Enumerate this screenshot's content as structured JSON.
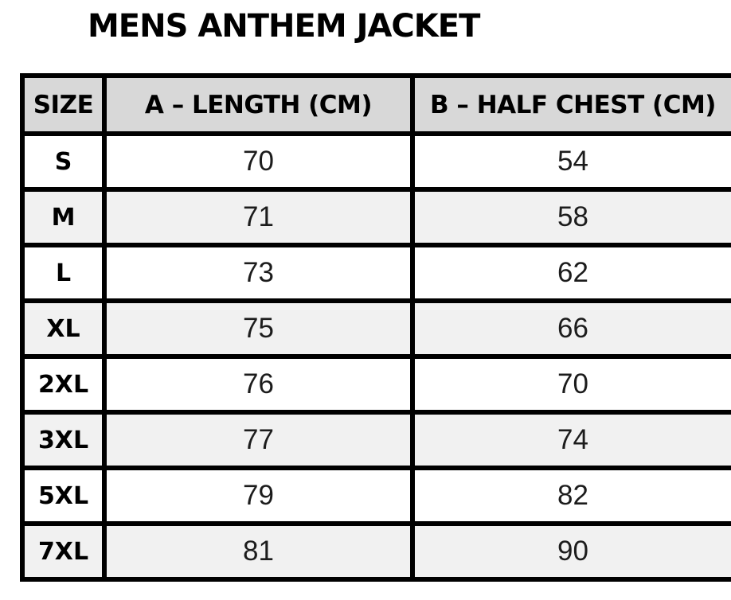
{
  "title": "MENS ANTHEM JACKET",
  "colors": {
    "header_bg": "#d8d8d8",
    "row_bg": "#ffffff",
    "row_alt_bg": "#f1f1f1",
    "border": "#000000",
    "text": "#000000"
  },
  "table": {
    "columns": [
      "SIZE",
      "A – LENGTH (CM)",
      "B – HALF CHEST (CM)"
    ],
    "rows": [
      [
        "S",
        "70",
        "54"
      ],
      [
        "M",
        "71",
        "58"
      ],
      [
        "L",
        "73",
        "62"
      ],
      [
        "XL",
        "75",
        "66"
      ],
      [
        "2XL",
        "76",
        "70"
      ],
      [
        "3XL",
        "77",
        "74"
      ],
      [
        "5XL",
        "79",
        "82"
      ],
      [
        "7XL",
        "81",
        "90"
      ]
    ]
  },
  "chart_data": {
    "type": "table",
    "title": "MENS ANTHEM JACKET",
    "columns": [
      "SIZE",
      "A – LENGTH (CM)",
      "B – HALF CHEST (CM)"
    ],
    "rows": [
      [
        "S",
        70,
        54
      ],
      [
        "M",
        71,
        58
      ],
      [
        "L",
        73,
        62
      ],
      [
        "XL",
        75,
        66
      ],
      [
        "2XL",
        76,
        70
      ],
      [
        "3XL",
        77,
        74
      ],
      [
        "5XL",
        79,
        82
      ],
      [
        "7XL",
        81,
        90
      ]
    ],
    "notes": "Size chart table; header row gray, data rows alternate white and light gray"
  }
}
